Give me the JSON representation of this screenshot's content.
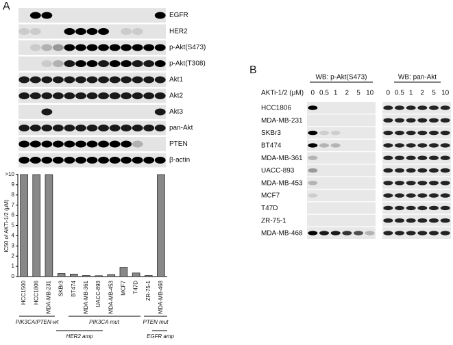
{
  "panel_a": {
    "label": "A",
    "blot_labels": [
      "EGFR",
      "HER2",
      "p-Akt(S473)",
      "p-Akt(T308)",
      "Akt1",
      "Akt2",
      "Akt3",
      "pan-Akt",
      "PTEN",
      "β-actin"
    ]
  },
  "chart_data": {
    "type": "bar",
    "ylabel": "IC50 of AKTi-1/2 (μM)",
    "categories": [
      "HCC1500",
      "HCC1806",
      "MDA-MB-231",
      "SKBr3",
      "BT474",
      "MDA-MB-361",
      "UACC-893",
      "MDA-MB-453",
      "MCF7",
      "T47D",
      "ZR-75-1",
      "MDA-MB-468"
    ],
    "values": [
      10,
      10,
      10,
      0.3,
      0.25,
      0.1,
      0.08,
      0.2,
      0.9,
      0.35,
      0.1,
      10
    ],
    "color": "#888888",
    "ylim": [
      0,
      10
    ],
    "yticks": [
      0,
      1,
      2,
      3,
      4,
      5,
      6,
      7,
      8,
      9,
      {
        "value": 10,
        "label": ">10"
      }
    ],
    "groups": [
      "PIK3CA/PTEN-wt",
      "PIK3CA mut",
      "PTEN mut",
      "HER2 amp",
      "EGFR amp"
    ]
  },
  "panel_b": {
    "label": "B",
    "headers": [
      "WB: p-Akt(S473)",
      "WB: pan-Akt"
    ],
    "dose_label": "AKTi-1/2 (μM)",
    "doses": [
      "0",
      "0.5",
      "1",
      "2",
      "5",
      "10"
    ],
    "cell_lines": [
      "HCC1806",
      "MDA-MB-231",
      "SKBr3",
      "BT474",
      "MDA-MB-361",
      "UACC-893",
      "MDA-MB-453",
      "MCF7",
      "T47D",
      "ZR-75-1",
      "MDA-MB-468"
    ]
  }
}
